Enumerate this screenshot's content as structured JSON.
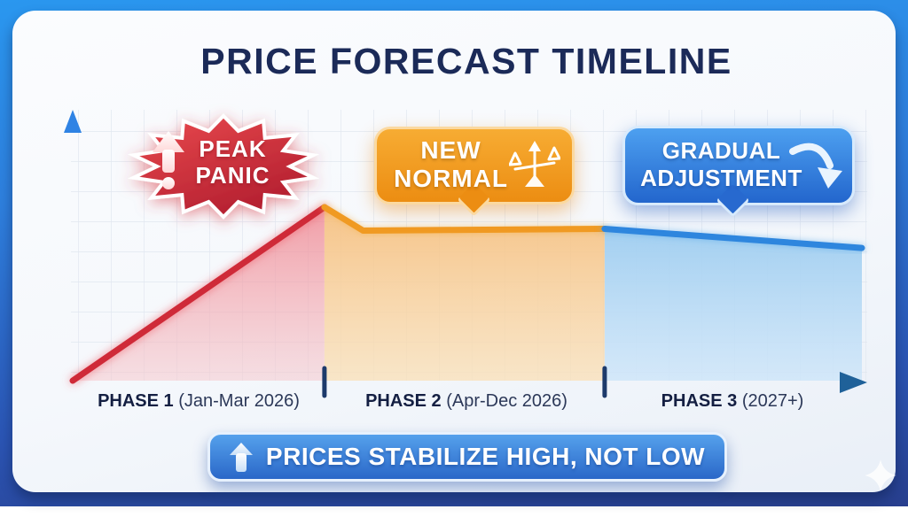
{
  "title": "PRICE FORECAST TIMELINE",
  "badges": {
    "peak_panic": {
      "line1": "PEAK",
      "line2": "PANIC"
    },
    "new_normal": {
      "line1": "NEW",
      "line2": "NORMAL"
    },
    "gradual_adjustment": {
      "line1": "GRADUAL",
      "line2": "ADJUSTMENT"
    }
  },
  "phases": [
    {
      "bold": "PHASE 1",
      "detail": "(Jan-Mar 2026)"
    },
    {
      "bold": "PHASE 2",
      "detail": "(Apr-Dec 2026)"
    },
    {
      "bold": "PHASE 3",
      "detail": "(2027+)"
    }
  ],
  "banner": {
    "text": "PRICES STABILIZE HIGH, NOT LOW"
  },
  "icons": {
    "peak_panic": "arrow-up-exclamation-icon",
    "new_normal": "balance-scale-icon",
    "gradual_adjustment": "curved-down-arrow-icon",
    "banner": "up-arrow-icon",
    "corner": "sparkle-icon"
  },
  "colors": {
    "frame_top": "#2a97ef",
    "frame_bottom": "#283f8e",
    "title_navy": "#1b2a58",
    "panic_red": "#cf2938",
    "normal_orange": "#f09a20",
    "adjustment_blue": "#2e86de",
    "axis_navy": "#16294f"
  },
  "chart_data": {
    "type": "area",
    "title": "PRICE FORECAST TIMELINE",
    "xlabel": "",
    "ylabel": "",
    "grid": true,
    "legend": "none",
    "x_unit": "timeline position 0-100 across the three phases",
    "y_unit": "relative price level (peak = 100)",
    "ylim": [
      0,
      110
    ],
    "phase_boundaries": [
      31.9,
      67.4
    ],
    "categories": [
      "PHASE 1 (Jan-Mar 2026)",
      "PHASE 2 (Apr-Dec 2026)",
      "PHASE 3 (2027+)"
    ],
    "series": [
      {
        "name": "Peak Panic (Phase 1)",
        "color": "#cf2938",
        "points": [
          {
            "x": 0,
            "y": 0
          },
          {
            "x": 31.9,
            "y": 100
          }
        ]
      },
      {
        "name": "New Normal (Phase 2)",
        "color": "#f09a20",
        "points": [
          {
            "x": 31.9,
            "y": 100
          },
          {
            "x": 36.8,
            "y": 86.5
          },
          {
            "x": 67.4,
            "y": 87.5
          }
        ]
      },
      {
        "name": "Gradual Adjustment (Phase 3)",
        "color": "#2e86de",
        "points": [
          {
            "x": 67.4,
            "y": 87.5
          },
          {
            "x": 100,
            "y": 76.5
          }
        ]
      }
    ],
    "annotations": [
      "PEAK PANIC",
      "NEW NORMAL",
      "GRADUAL ADJUSTMENT",
      "PRICES STABILIZE HIGH, NOT LOW"
    ]
  }
}
